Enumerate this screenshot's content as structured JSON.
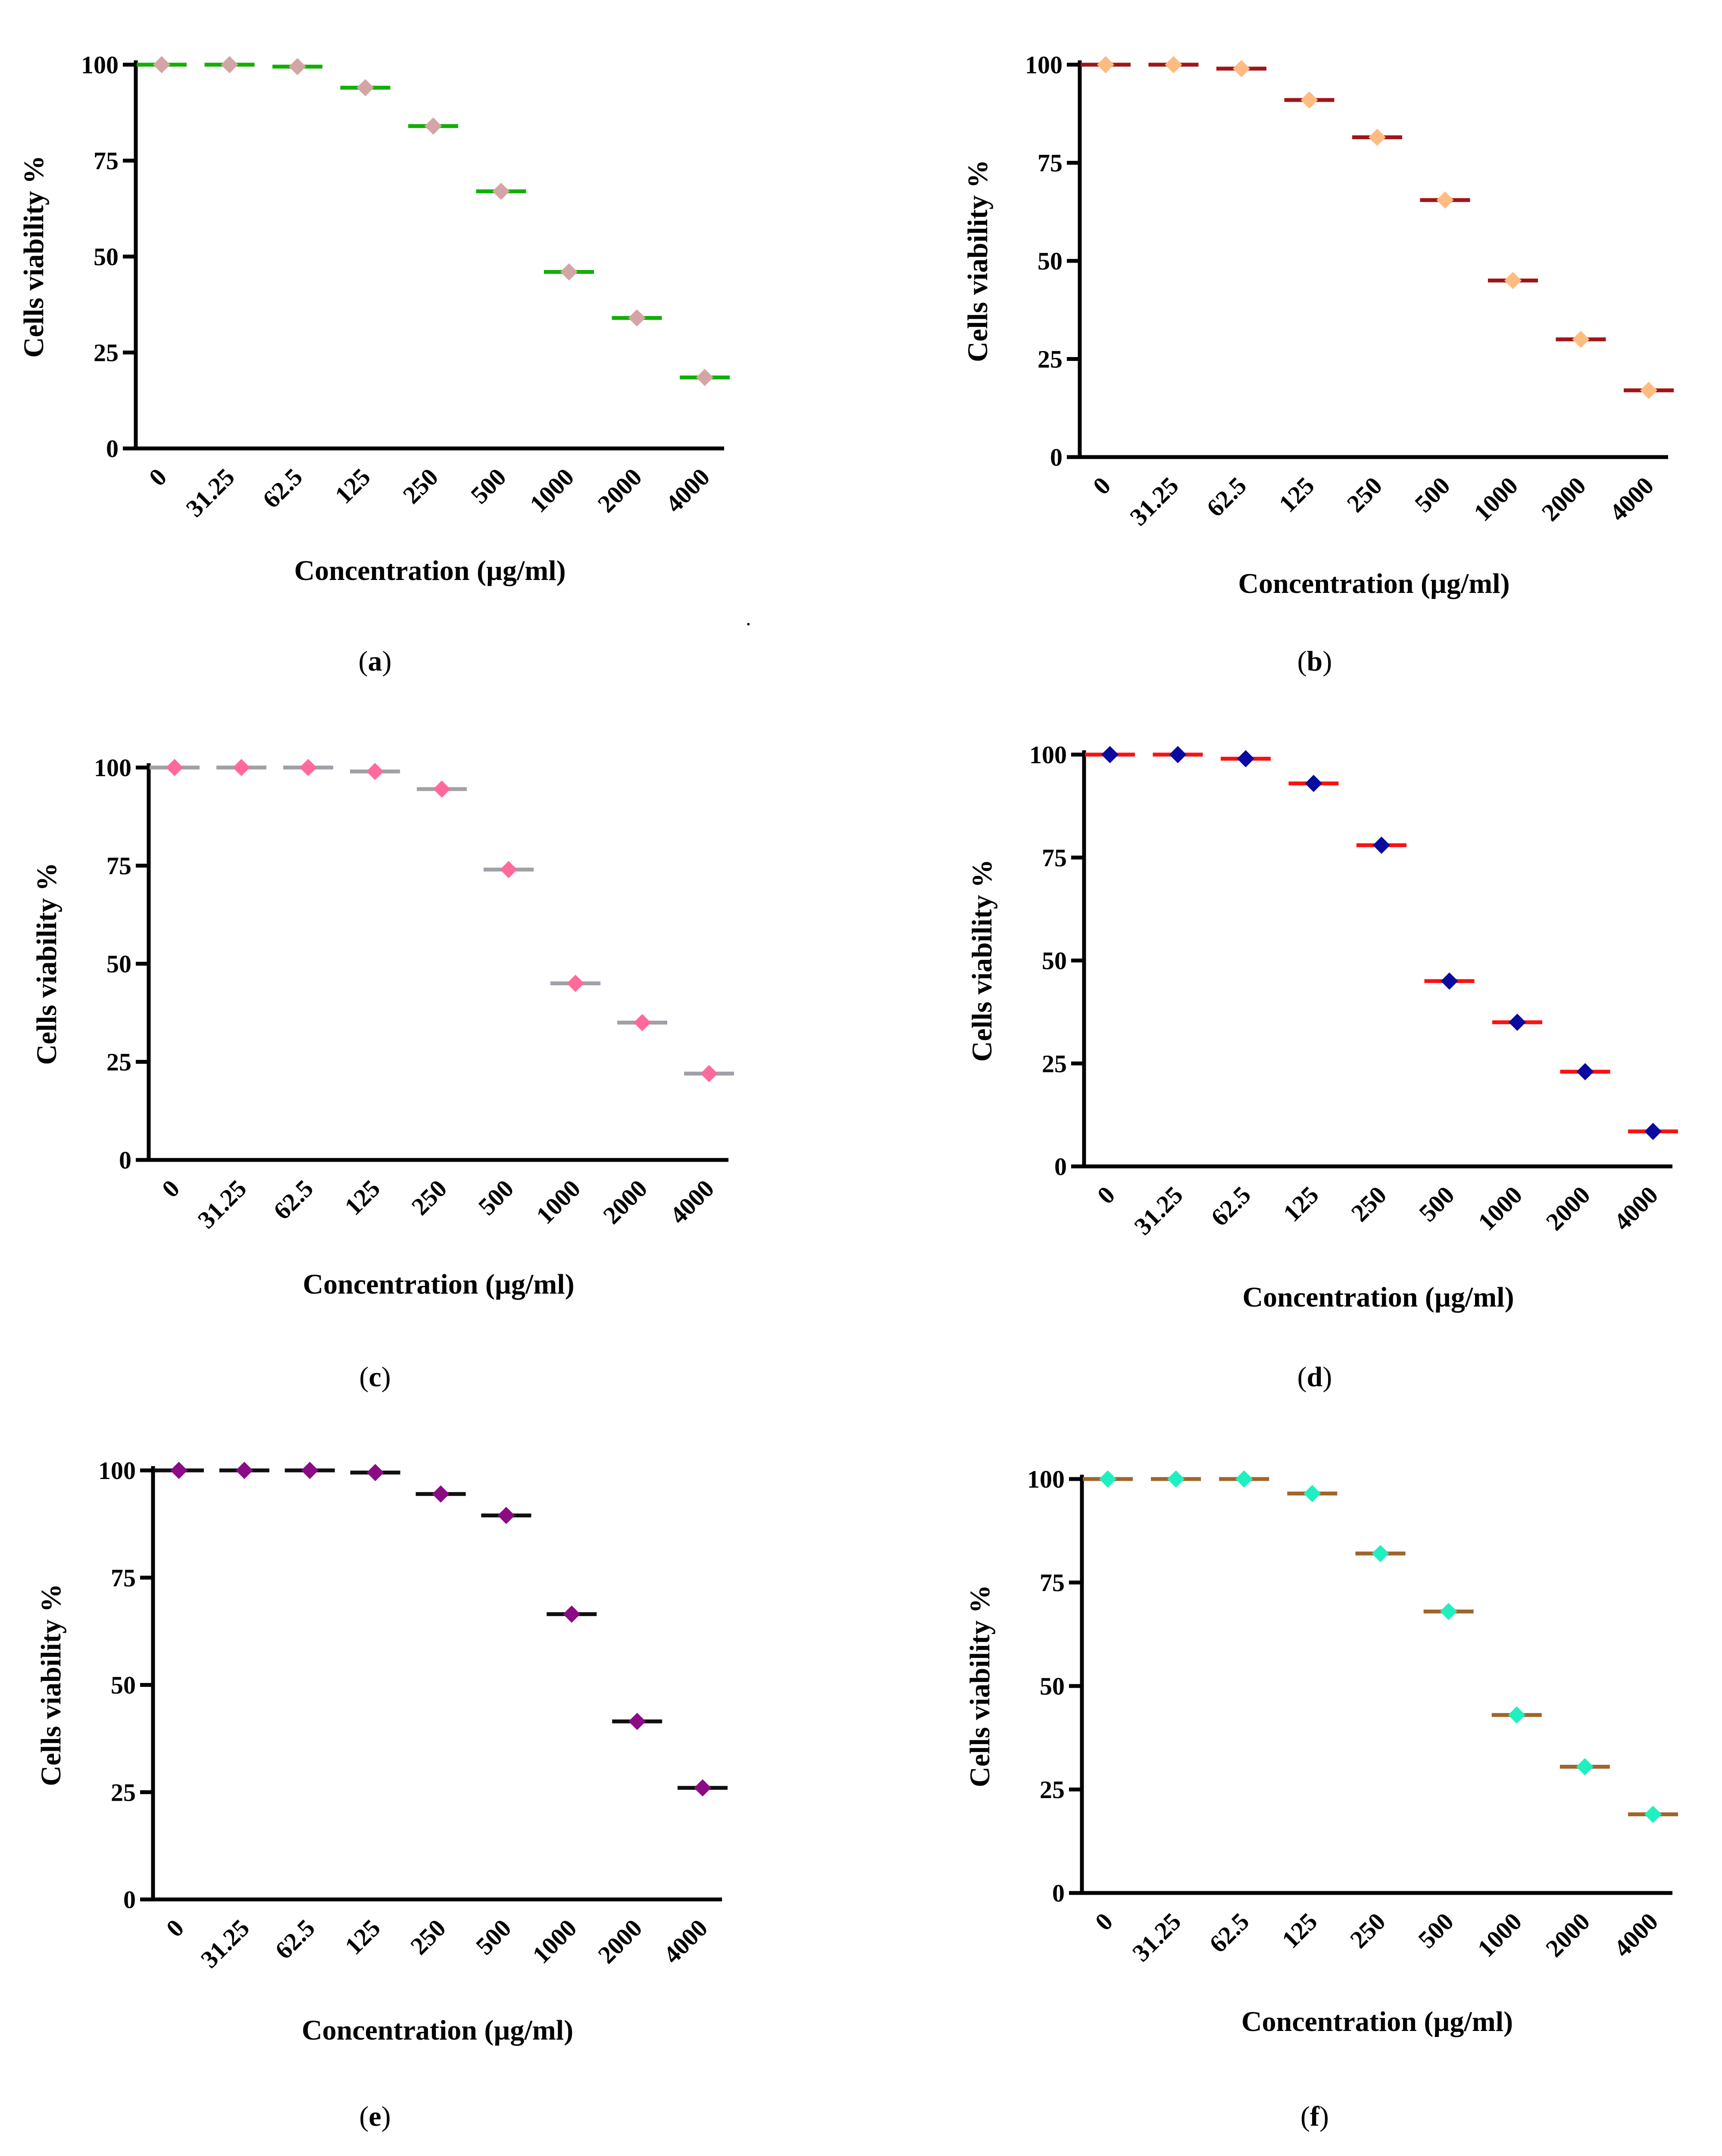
{
  "figure": {
    "stray_mark": "."
  },
  "chart_data": [
    {
      "type": "scatter",
      "panel": "a",
      "marker_color": "#d4a5a5",
      "bar_color": "#10b000",
      "title": "",
      "xlabel": "Concentration (µg/ml)",
      "ylabel": "Cells viability %",
      "categories": [
        "0",
        "31.25",
        "62.5",
        "125",
        "250",
        "500",
        "1000",
        "2000",
        "4000"
      ],
      "values": [
        100,
        100,
        99.5,
        94,
        84,
        67,
        46,
        34,
        18.5
      ],
      "ylim": [
        0,
        100
      ],
      "yticks": [
        "0",
        "25",
        "50",
        "75",
        "100"
      ],
      "caption": "(a)"
    },
    {
      "type": "scatter",
      "panel": "b",
      "marker_color": "#ffbb80",
      "bar_color": "#a01418",
      "title": "",
      "xlabel": "Concentration (µg/ml)",
      "ylabel": "Cells viability %",
      "categories": [
        "0",
        "31.25",
        "62.5",
        "125",
        "250",
        "500",
        "1000",
        "2000",
        "4000"
      ],
      "values": [
        100,
        100,
        99,
        91,
        81.5,
        65.5,
        45,
        30,
        17
      ],
      "ylim": [
        0,
        100
      ],
      "yticks": [
        "0",
        "25",
        "50",
        "75",
        "100"
      ],
      "caption": "(b)"
    },
    {
      "type": "scatter",
      "panel": "c",
      "marker_color": "#ff6a9a",
      "bar_color": "#a0a0a8",
      "title": "",
      "xlabel": "Concentration (µg/ml)",
      "ylabel": "Cells viability %",
      "categories": [
        "0",
        "31.25",
        "62.5",
        "125",
        "250",
        "500",
        "1000",
        "2000",
        "4000"
      ],
      "values": [
        100,
        100,
        100,
        99,
        94.5,
        74,
        45,
        35,
        22
      ],
      "ylim": [
        0,
        100
      ],
      "yticks": [
        "0",
        "25",
        "50",
        "75",
        "100"
      ],
      "caption": "(c)"
    },
    {
      "type": "scatter",
      "panel": "d",
      "marker_color": "#0a0a9e",
      "bar_color": "#ff1010",
      "title": "",
      "xlabel": "Concentration (µg/ml)",
      "ylabel": "Cells viability %",
      "categories": [
        "0",
        "31.25",
        "62.5",
        "125",
        "250",
        "500",
        "1000",
        "2000",
        "4000"
      ],
      "values": [
        100,
        100,
        99,
        93,
        78,
        45,
        35,
        23,
        8.5
      ],
      "ylim": [
        0,
        100
      ],
      "yticks": [
        "0",
        "25",
        "50",
        "75",
        "100"
      ],
      "caption": "(d)"
    },
    {
      "type": "scatter",
      "panel": "e",
      "marker_color": "#8b0a85",
      "bar_color": "#101010",
      "title": "",
      "xlabel": "Concentration (µg/ml)",
      "ylabel": "Cells viability %",
      "categories": [
        "0",
        "31.25",
        "62.5",
        "125",
        "250",
        "500",
        "1000",
        "2000",
        "4000"
      ],
      "values": [
        100,
        100,
        100,
        99.5,
        94.5,
        89.5,
        66.5,
        41.5,
        26
      ],
      "ylim": [
        0,
        100
      ],
      "yticks": [
        "25",
        "50",
        "75",
        "100"
      ],
      "yzero_label": "0",
      "caption": "(e)"
    },
    {
      "type": "scatter",
      "panel": "f",
      "marker_color": "#1ef0c0",
      "bar_color": "#a0642a",
      "title": "",
      "xlabel": "Concentration (µg/ml)",
      "ylabel": "Cells viability %",
      "categories": [
        "0",
        "31.25",
        "62.5",
        "125",
        "250",
        "500",
        "1000",
        "2000",
        "4000"
      ],
      "values": [
        100,
        100,
        100,
        96.5,
        82,
        68,
        43,
        30.5,
        19
      ],
      "ylim": [
        0,
        100
      ],
      "yticks": [
        "0",
        "25",
        "50",
        "75",
        "100"
      ],
      "caption": "(f)"
    }
  ]
}
